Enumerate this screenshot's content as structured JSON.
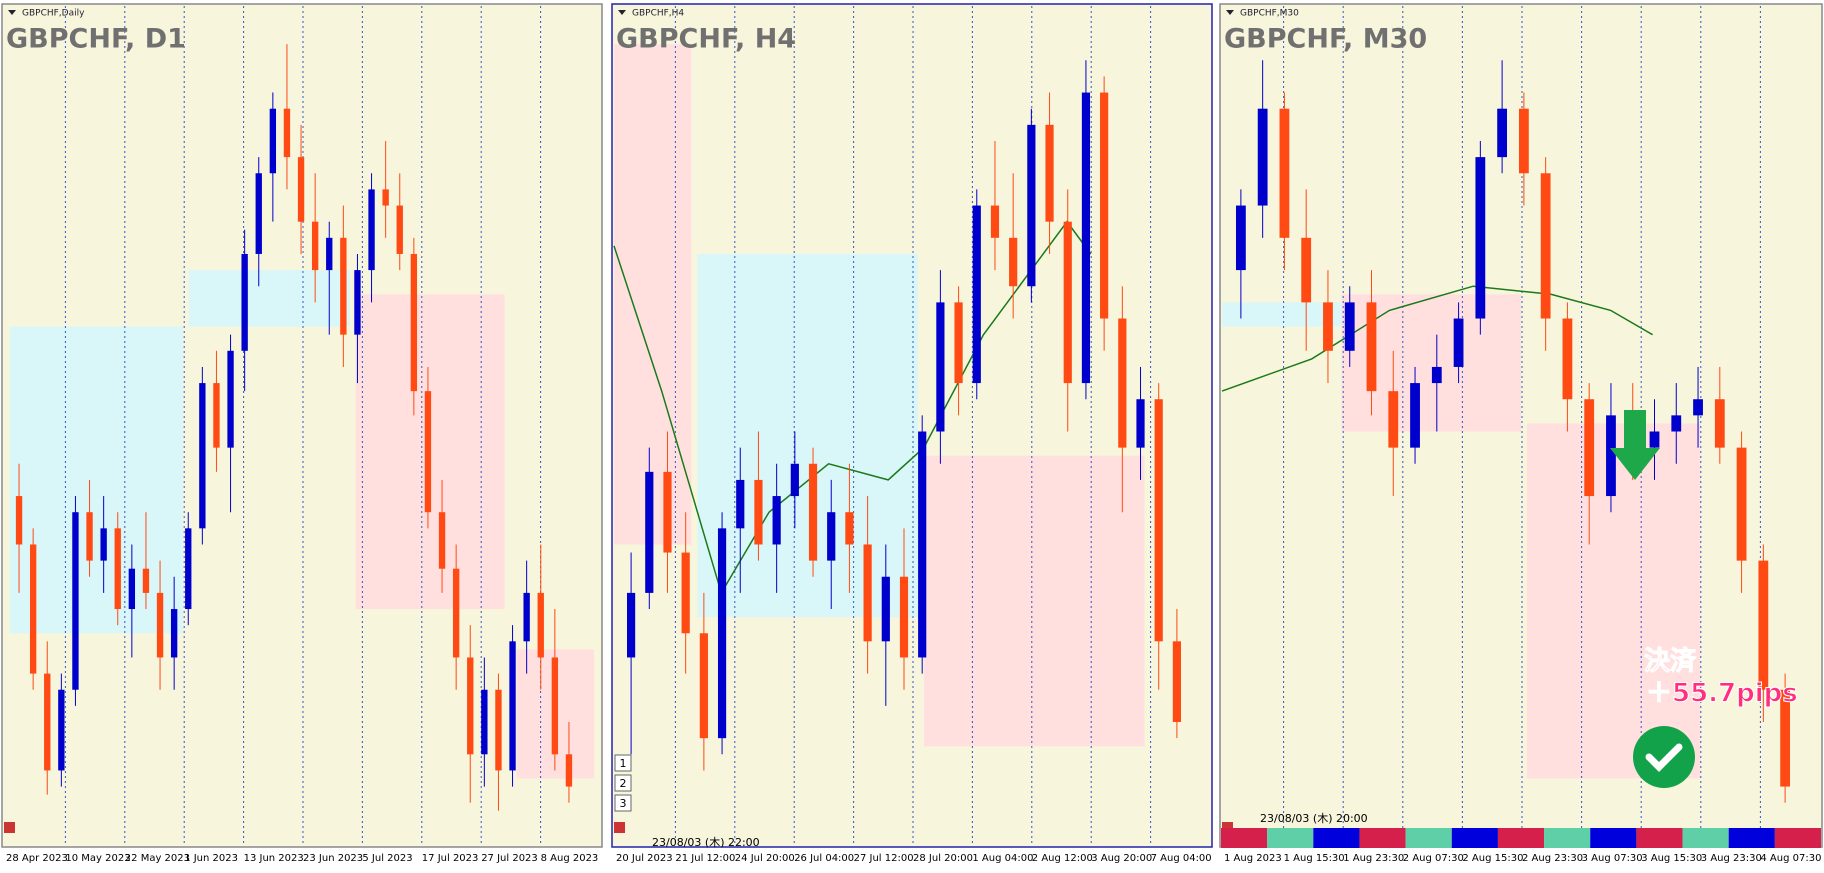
{
  "panels": [
    {
      "label": "GBPCHF,Daily",
      "title": "GBPCHF, D1",
      "x_labels": [
        "28 Apr 2023",
        "10 May 2023",
        "22 May 2023",
        "1 Jun 2023",
        "13 Jun 2023",
        "23 Jun 2023",
        "5 Jul 2023",
        "17 Jul 2023",
        "27 Jul 2023",
        "8 Aug 2023"
      ],
      "candles": [
        [
          42,
          46,
          30,
          36
        ],
        [
          36,
          38,
          18,
          20
        ],
        [
          20,
          24,
          5,
          8
        ],
        [
          8,
          20,
          6,
          18
        ],
        [
          18,
          42,
          16,
          40
        ],
        [
          40,
          44,
          32,
          34
        ],
        [
          34,
          42,
          30,
          38
        ],
        [
          38,
          40,
          26,
          28
        ],
        [
          28,
          36,
          22,
          33
        ],
        [
          33,
          40,
          28,
          30
        ],
        [
          30,
          34,
          18,
          22
        ],
        [
          22,
          32,
          18,
          28
        ],
        [
          28,
          40,
          26,
          38
        ],
        [
          38,
          58,
          36,
          56
        ],
        [
          56,
          60,
          45,
          48
        ],
        [
          48,
          62,
          40,
          60
        ],
        [
          60,
          75,
          55,
          72
        ],
        [
          72,
          84,
          68,
          82
        ],
        [
          82,
          92,
          76,
          90
        ],
        [
          90,
          98,
          80,
          84
        ],
        [
          84,
          88,
          72,
          76
        ],
        [
          76,
          82,
          66,
          70
        ],
        [
          70,
          76,
          62,
          74
        ],
        [
          74,
          78,
          58,
          62
        ],
        [
          62,
          72,
          56,
          70
        ],
        [
          70,
          82,
          66,
          80
        ],
        [
          80,
          86,
          74,
          78
        ],
        [
          78,
          82,
          70,
          72
        ],
        [
          72,
          74,
          52,
          55
        ],
        [
          55,
          58,
          38,
          40
        ],
        [
          40,
          44,
          30,
          33
        ],
        [
          33,
          36,
          18,
          22
        ],
        [
          22,
          26,
          4,
          10
        ],
        [
          10,
          22,
          6,
          18
        ],
        [
          18,
          20,
          3,
          8
        ],
        [
          8,
          26,
          6,
          24
        ],
        [
          24,
          34,
          20,
          30
        ],
        [
          30,
          36,
          18,
          22
        ],
        [
          22,
          28,
          8,
          10
        ],
        [
          10,
          14,
          4,
          6
        ]
      ]
    },
    {
      "label": "GBPCHF,H4",
      "title": "GBPCHF, H4",
      "x_labels": [
        "20 Jul 2023",
        "21 Jul 12:00",
        "24 Jul 20:00",
        "26 Jul 04:00",
        "27 Jul 12:00",
        "28 Jul 20:00",
        "1 Aug 04:00",
        "2 Aug 12:00",
        "3 Aug 20:00",
        "7 Aug 04:00"
      ],
      "timestamp": "23/08/03 (木) 22:00",
      "buttons": [
        "1",
        "2",
        "3"
      ],
      "candles": [
        [
          22,
          35,
          10,
          30
        ],
        [
          30,
          48,
          28,
          45
        ],
        [
          45,
          50,
          30,
          35
        ],
        [
          35,
          40,
          20,
          25
        ],
        [
          25,
          30,
          8,
          12
        ],
        [
          12,
          40,
          10,
          38
        ],
        [
          38,
          48,
          30,
          44
        ],
        [
          44,
          50,
          34,
          36
        ],
        [
          36,
          46,
          30,
          42
        ],
        [
          42,
          50,
          38,
          46
        ],
        [
          46,
          48,
          32,
          34
        ],
        [
          34,
          44,
          28,
          40
        ],
        [
          40,
          46,
          30,
          36
        ],
        [
          36,
          42,
          20,
          24
        ],
        [
          24,
          36,
          16,
          32
        ],
        [
          32,
          38,
          18,
          22
        ],
        [
          22,
          52,
          20,
          50
        ],
        [
          50,
          70,
          46,
          66
        ],
        [
          66,
          68,
          52,
          56
        ],
        [
          56,
          80,
          54,
          78
        ],
        [
          78,
          86,
          70,
          74
        ],
        [
          74,
          82,
          64,
          68
        ],
        [
          68,
          90,
          66,
          88
        ],
        [
          88,
          92,
          72,
          76
        ],
        [
          76,
          80,
          50,
          56
        ],
        [
          56,
          96,
          54,
          92
        ],
        [
          92,
          94,
          60,
          64
        ],
        [
          64,
          68,
          40,
          48
        ],
        [
          48,
          58,
          44,
          54
        ],
        [
          54,
          56,
          18,
          24
        ],
        [
          24,
          28,
          12,
          14
        ]
      ]
    },
    {
      "label": "GBPCHF,M30",
      "title": "GBPCHF, M30",
      "x_labels": [
        "1 Aug 2023",
        "1 Aug 15:30",
        "1 Aug 23:30",
        "2 Aug 07:30",
        "2 Aug 15:30",
        "2 Aug 23:30",
        "3 Aug 07:30",
        "3 Aug 15:30",
        "3 Aug 23:30",
        "4 Aug 07:30"
      ],
      "timestamp": "23/08/03 (木) 20:00",
      "annotation": [
        "決済",
        "＋55.7pips"
      ],
      "candles": [
        [
          70,
          80,
          64,
          78
        ],
        [
          78,
          96,
          74,
          90
        ],
        [
          90,
          92,
          70,
          74
        ],
        [
          74,
          80,
          60,
          66
        ],
        [
          66,
          70,
          56,
          60
        ],
        [
          60,
          68,
          58,
          66
        ],
        [
          66,
          70,
          52,
          55
        ],
        [
          55,
          60,
          42,
          48
        ],
        [
          48,
          58,
          46,
          56
        ],
        [
          56,
          62,
          50,
          58
        ],
        [
          58,
          66,
          56,
          64
        ],
        [
          64,
          86,
          62,
          84
        ],
        [
          84,
          96,
          82,
          90
        ],
        [
          90,
          92,
          78,
          82
        ],
        [
          82,
          84,
          60,
          64
        ],
        [
          64,
          66,
          50,
          54
        ],
        [
          54,
          56,
          36,
          42
        ],
        [
          42,
          56,
          40,
          52
        ],
        [
          52,
          56,
          44,
          48
        ],
        [
          48,
          54,
          44,
          50
        ],
        [
          50,
          56,
          46,
          52
        ],
        [
          52,
          58,
          48,
          54
        ],
        [
          54,
          58,
          46,
          48
        ],
        [
          48,
          50,
          30,
          34
        ],
        [
          34,
          36,
          14,
          18
        ],
        [
          18,
          20,
          4,
          6
        ]
      ]
    }
  ]
}
